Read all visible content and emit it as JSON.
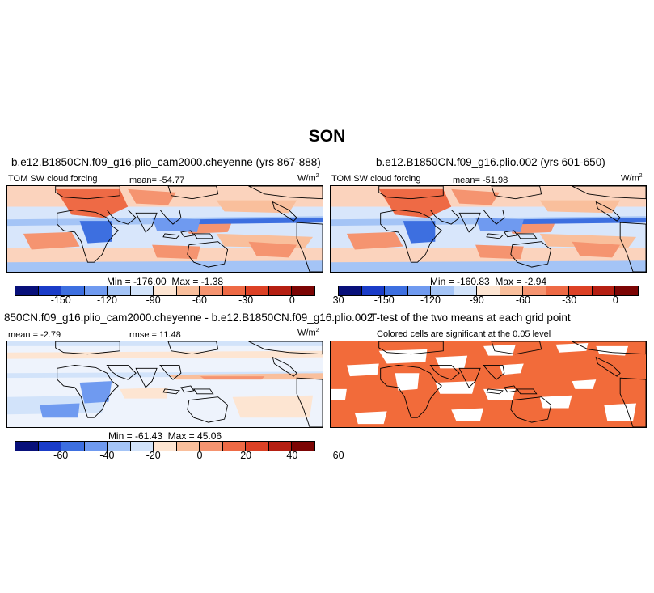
{
  "figure": {
    "season_title": "SON",
    "units_label": "W/m",
    "units_superscript": "2"
  },
  "panels": {
    "top_left": {
      "title": "b.e12.B1850CN.f09_g16.plio_cam2000.cheyenne (yrs 867-888)",
      "variable": "TOM SW cloud forcing",
      "mean_label": "mean=",
      "mean": "-54.77",
      "min_label": "Min =",
      "min": "-176.00",
      "max_label": "Max =",
      "max": "-1.38"
    },
    "top_right": {
      "title": "b.e12.B1850CN.f09_g16.plio.002 (yrs 601-650)",
      "variable": "TOM SW cloud forcing",
      "mean_label": "mean=",
      "mean": "-51.98",
      "min_label": "Min =",
      "min": "-160.83",
      "max_label": "Max =",
      "max": "-2.94"
    },
    "bottom_left": {
      "title": "850CN.f09_g16.plio_cam2000.cheyenne - b.e12.B1850CN.f09_g16.plio.002",
      "mean_label": "mean =",
      "mean": "-2.79",
      "rmse_label": "rmse =",
      "rmse": "11.48",
      "min_label": "Min =",
      "min": "-61.43",
      "max_label": "Max =",
      "max": "45.06"
    },
    "bottom_right": {
      "title": "T-test of the two means at each grid point",
      "subtitle": "Colored cells are significant at the 0.05 level",
      "significant_color": "#f26b3a"
    }
  },
  "colorbars": {
    "absolute": {
      "colors": [
        "#08107a",
        "#1a3cc8",
        "#3d6fe0",
        "#6f9af0",
        "#a4c4f6",
        "#d2e3fa",
        "#fde5d2",
        "#f9bf9c",
        "#f59470",
        "#ee6a45",
        "#dc4125",
        "#b51f12",
        "#7c0504"
      ],
      "ticks": [
        "-150",
        "-120",
        "-90",
        "-60",
        "-30",
        "0",
        "30"
      ]
    },
    "difference": {
      "colors": [
        "#08107a",
        "#1a3cc8",
        "#3d6fe0",
        "#6f9af0",
        "#a4c4f6",
        "#d2e3fa",
        "#fde5d2",
        "#f9bf9c",
        "#f59470",
        "#ee6a45",
        "#dc4125",
        "#b51f12",
        "#7c0504"
      ],
      "ticks": [
        "-60",
        "-40",
        "-20",
        "0",
        "20",
        "40",
        "60"
      ]
    }
  }
}
